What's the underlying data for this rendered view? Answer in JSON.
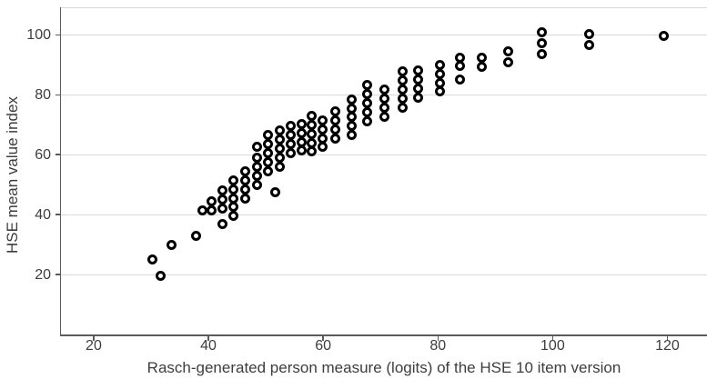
{
  "chart_data": {
    "type": "scatter",
    "title": "",
    "xlabel": "Rasch-generated person measure (logits) of the HSE 10 item version",
    "ylabel": "HSE mean value index",
    "x_ticks": [
      20,
      40,
      60,
      80,
      100,
      120
    ],
    "y_ticks": [
      20,
      40,
      60,
      80,
      100
    ],
    "xlim": [
      14.3,
      126.9
    ],
    "ylim": [
      0,
      109.2
    ],
    "grid": "horizontal-only",
    "legend": "none",
    "marker": "open-circle",
    "colors": {
      "point_stroke": "#000000",
      "point_fill": "#ffffff",
      "gridline": "#d9d9d9",
      "axis": "#5a5a5a",
      "frame": "#d9d9d9",
      "text": "#3d3d3d",
      "background": "#ffffff"
    },
    "points": [
      [
        30.2,
        25
      ],
      [
        31.7,
        19.5
      ],
      [
        33.5,
        30
      ],
      [
        37.9,
        33
      ],
      [
        38.9,
        41.4
      ],
      [
        40.6,
        44.5
      ],
      [
        40.6,
        41.5
      ],
      [
        42.4,
        48
      ],
      [
        42.4,
        45
      ],
      [
        42.4,
        42
      ],
      [
        42.4,
        37
      ],
      [
        44.3,
        51.5
      ],
      [
        44.3,
        48.5
      ],
      [
        44.3,
        45.5
      ],
      [
        44.3,
        42.5
      ],
      [
        44.3,
        39.5
      ],
      [
        46.4,
        54.5
      ],
      [
        46.4,
        51.5
      ],
      [
        46.4,
        48.5
      ],
      [
        46.4,
        45.5
      ],
      [
        48.4,
        62.5
      ],
      [
        48.4,
        59
      ],
      [
        48.4,
        56
      ],
      [
        48.4,
        53
      ],
      [
        48.4,
        50
      ],
      [
        50.4,
        66.5
      ],
      [
        50.4,
        63.5
      ],
      [
        50.4,
        60.5
      ],
      [
        50.4,
        57.5
      ],
      [
        50.4,
        54.5
      ],
      [
        51.6,
        47.5
      ],
      [
        52.4,
        68
      ],
      [
        52.4,
        65
      ],
      [
        52.4,
        62
      ],
      [
        52.4,
        59
      ],
      [
        52.4,
        56
      ],
      [
        54.4,
        69.5
      ],
      [
        54.4,
        66.5
      ],
      [
        54.4,
        63.5
      ],
      [
        54.4,
        60.5
      ],
      [
        56.2,
        70.3
      ],
      [
        56.2,
        67.3
      ],
      [
        56.2,
        64.3
      ],
      [
        56.2,
        61.3
      ],
      [
        58,
        73
      ],
      [
        58,
        70
      ],
      [
        58,
        67
      ],
      [
        58,
        64
      ],
      [
        58,
        61
      ],
      [
        59.9,
        71.5
      ],
      [
        59.9,
        68.5
      ],
      [
        59.9,
        65.5
      ],
      [
        59.9,
        62.5
      ],
      [
        62.1,
        74.5
      ],
      [
        62.1,
        71.5
      ],
      [
        62.1,
        68.5
      ],
      [
        62.1,
        65.5
      ],
      [
        64.9,
        78.5
      ],
      [
        64.9,
        75.5
      ],
      [
        64.9,
        72.5
      ],
      [
        64.9,
        69.5
      ],
      [
        64.9,
        66.5
      ],
      [
        67.7,
        83.3
      ],
      [
        67.7,
        80.2
      ],
      [
        67.7,
        77.2
      ],
      [
        67.7,
        74.2
      ],
      [
        67.7,
        71.1
      ],
      [
        70.7,
        81.8
      ],
      [
        70.7,
        78.8
      ],
      [
        70.7,
        75.8
      ],
      [
        70.7,
        72.8
      ],
      [
        73.8,
        87.7
      ],
      [
        73.8,
        84.7
      ],
      [
        73.8,
        81.7
      ],
      [
        73.8,
        78.7
      ],
      [
        73.8,
        75.6
      ],
      [
        76.6,
        88
      ],
      [
        76.6,
        85
      ],
      [
        76.6,
        82
      ],
      [
        76.6,
        79
      ],
      [
        80.4,
        90
      ],
      [
        80.4,
        87
      ],
      [
        80.4,
        84
      ],
      [
        80.4,
        81
      ],
      [
        83.8,
        92.5
      ],
      [
        83.8,
        89.5
      ],
      [
        83.8,
        85
      ],
      [
        87.6,
        92.3
      ],
      [
        87.6,
        89.3
      ],
      [
        92.2,
        94.5
      ],
      [
        92.2,
        91
      ],
      [
        98.1,
        101
      ],
      [
        98.1,
        97.3
      ],
      [
        98.1,
        93.7
      ],
      [
        106.4,
        100.3
      ],
      [
        106.4,
        96.5
      ],
      [
        119.3,
        99.7
      ]
    ]
  }
}
